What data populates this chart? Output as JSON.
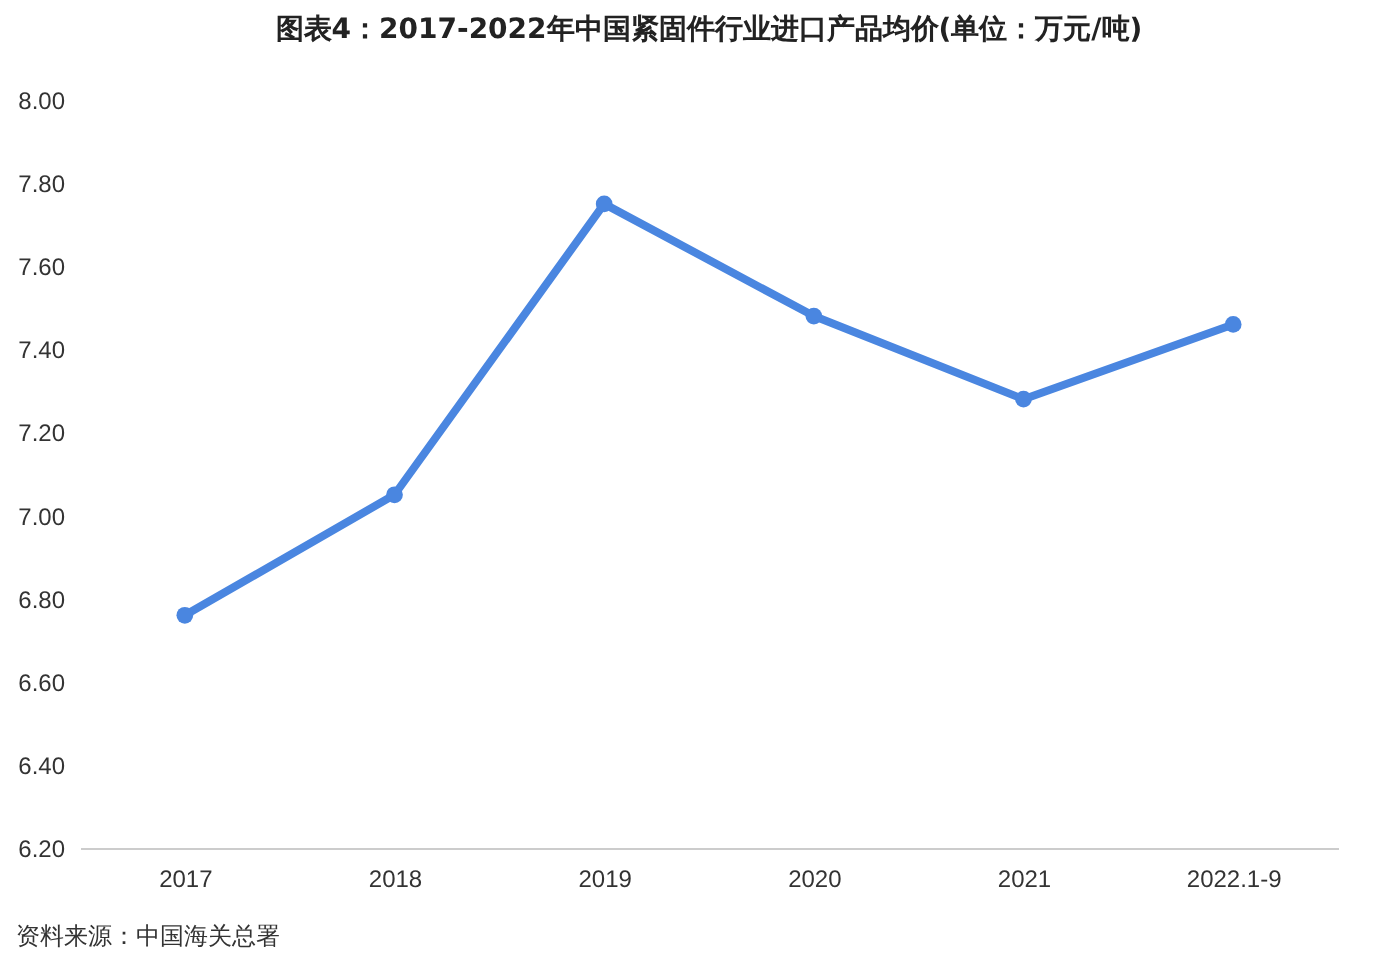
{
  "chart_data": {
    "type": "line",
    "title": "图表4：2017-2022年中国紧固件行业进口产品均价(单位：万元/吨)",
    "categories": [
      "2017",
      "2018",
      "2019",
      "2020",
      "2021",
      "2022.1-9"
    ],
    "series": [
      {
        "color": "#4a86e0",
        "values": [
          6.76,
          7.05,
          7.75,
          7.48,
          7.28,
          7.46
        ]
      }
    ],
    "ylim": [
      6.2,
      8.0
    ],
    "yticks": [
      {
        "value": 6.2,
        "label": "6.20"
      },
      {
        "value": 6.4,
        "label": "6.40"
      },
      {
        "value": 6.6,
        "label": "6.60"
      },
      {
        "value": 6.8,
        "label": "6.80"
      },
      {
        "value": 7.0,
        "label": "7.00"
      },
      {
        "value": 7.2,
        "label": "7.20"
      },
      {
        "value": 7.4,
        "label": "7.40"
      },
      {
        "value": 7.6,
        "label": "7.60"
      },
      {
        "value": 7.8,
        "label": "7.80"
      },
      {
        "value": 8.0,
        "label": "8.00"
      }
    ],
    "marker": "circle",
    "line_style": "solid",
    "grid": false,
    "annotations": [
      "资料来源：中国海关总署"
    ]
  }
}
